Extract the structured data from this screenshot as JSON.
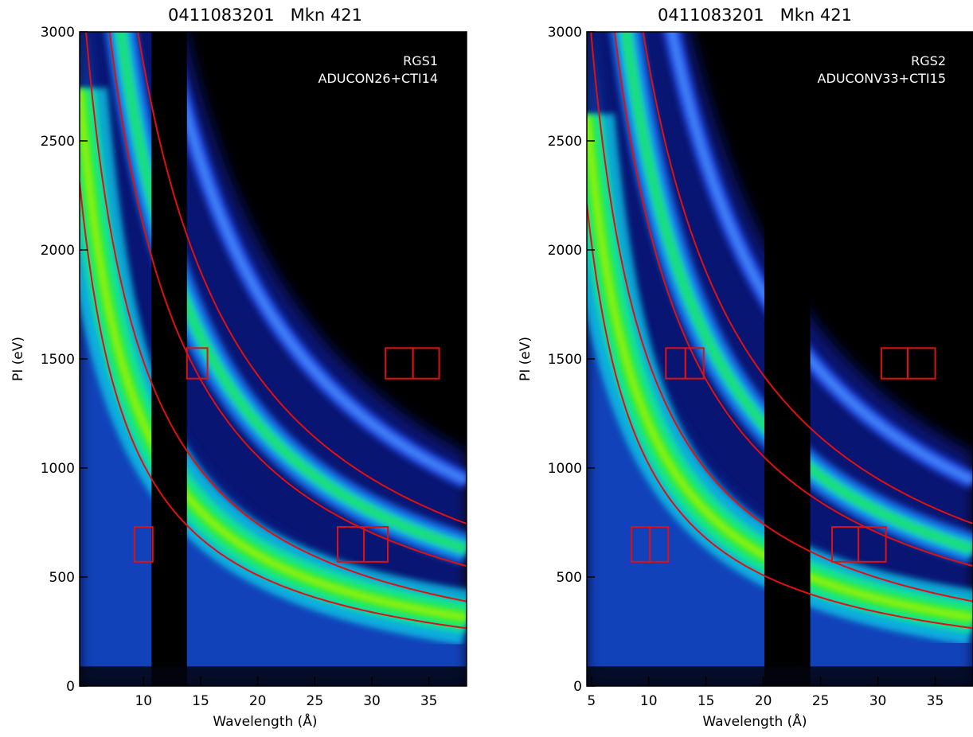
{
  "chart_data": [
    {
      "type": "heatmap",
      "title": "0411083201   Mkn 421",
      "annotations": [
        "RGS1",
        "ADUCON26+CTI14"
      ],
      "xlabel": "Wavelength (Å)",
      "ylabel": "PI (eV)",
      "xlim": [
        4.4,
        38.3
      ],
      "ylim": [
        0,
        3000
      ],
      "xticks": [
        10,
        15,
        20,
        25,
        30,
        35
      ],
      "yticks": [
        0,
        500,
        1000,
        1500,
        2000,
        2500,
        3000
      ]
    },
    {
      "type": "heatmap",
      "title": "0411083201   Mkn 421",
      "annotations": [
        "RGS2",
        "ADUCONV33+CTI15"
      ],
      "xlabel": "Wavelength (Å)",
      "ylabel": "PI (eV)",
      "xlim": [
        4.6,
        38.3
      ],
      "ylim": [
        0,
        3000
      ],
      "xticks": [
        5,
        10,
        15,
        20,
        25,
        30,
        35
      ],
      "yticks": [
        0,
        500,
        1000,
        1500,
        2000,
        2500,
        3000
      ]
    }
  ]
}
